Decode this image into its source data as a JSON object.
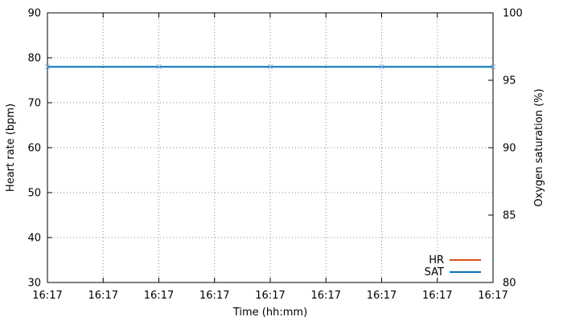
{
  "chart_data": {
    "type": "line",
    "xlabel": "Time (hh:mm)",
    "ylabel_left": "Heart rate (bpm)",
    "ylabel_right": "Oxygen saturation (%)",
    "x_tick_labels": [
      "16:17",
      "16:17",
      "16:17",
      "16:17",
      "16:17",
      "16:17",
      "16:17",
      "16:17",
      "16:17"
    ],
    "ylim_left": [
      30,
      90
    ],
    "yticks_left": [
      30,
      40,
      50,
      60,
      70,
      80,
      90
    ],
    "ylim_right": [
      80,
      100
    ],
    "yticks_right": [
      80,
      85,
      90,
      95,
      100
    ],
    "grid": true,
    "legend_position": "bottom-right",
    "series": [
      {
        "name": "HR",
        "axis": "left",
        "color": "#d95319",
        "values": []
      },
      {
        "name": "SAT",
        "axis": "right",
        "color": "#0072bd",
        "marker_color": "#7fb8e6",
        "values": [
          96,
          96,
          96,
          96,
          96
        ]
      }
    ]
  }
}
